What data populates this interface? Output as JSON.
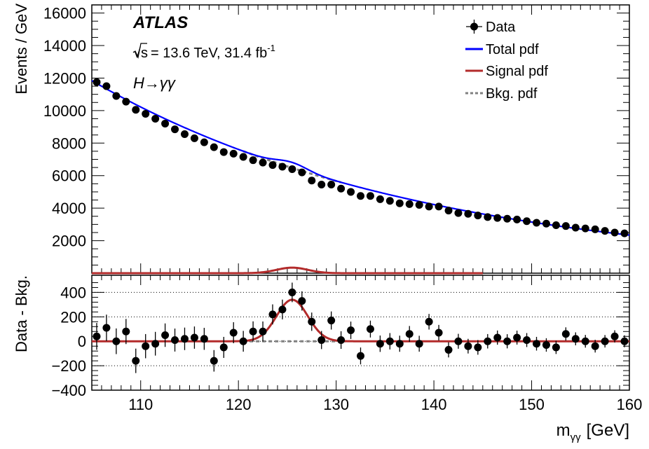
{
  "chart_data": {
    "type": "scatter",
    "experiment": "ATLAS",
    "energy_text": "= 13.6 TeV, 31.4 fb",
    "sqrt_symbol": "√s",
    "lumi_exponent": "-1",
    "process": "H→γγ",
    "xlabel": "m",
    "xlabel_sub": "γγ",
    "xlabel_unit": "[GeV]",
    "xlim": [
      105,
      160
    ],
    "x_ticks": [
      "110",
      "120",
      "130",
      "140",
      "150",
      "160"
    ],
    "legend": {
      "placement": "top-right",
      "entries": [
        "Data",
        "Total pdf",
        "Signal pdf",
        "Bkg. pdf"
      ]
    },
    "colors": {
      "data": "#000000",
      "total": "#0000ff",
      "signal": "#b32b2b",
      "background": "#808080"
    },
    "signal_model": {
      "mean": 125.5,
      "sigma": 1.6,
      "amplitude": 340
    },
    "top_panel": {
      "ylabel": "Events / GeV",
      "ylim": [
        0,
        16500
      ],
      "y_ticks": [
        "2000",
        "4000",
        "6000",
        "8000",
        "10000",
        "12000",
        "14000",
        "16000"
      ],
      "x": [
        105.5,
        106.5,
        107.5,
        108.5,
        109.5,
        110.5,
        111.5,
        112.5,
        113.5,
        114.5,
        115.5,
        116.5,
        117.5,
        118.5,
        119.5,
        120.5,
        121.5,
        122.5,
        123.5,
        124.5,
        125.5,
        126.5,
        127.5,
        128.5,
        129.5,
        130.5,
        131.5,
        132.5,
        133.5,
        134.5,
        135.5,
        136.5,
        137.5,
        138.5,
        139.5,
        140.5,
        141.5,
        142.5,
        143.5,
        144.5,
        145.5,
        146.5,
        147.5,
        148.5,
        149.5,
        150.5,
        151.5,
        152.5,
        153.5,
        154.5,
        155.5,
        156.5,
        157.5,
        158.5,
        159.5
      ],
      "data": [
        11750,
        11500,
        10900,
        10550,
        10050,
        9800,
        9500,
        9200,
        8850,
        8550,
        8300,
        8050,
        7750,
        7450,
        7350,
        7150,
        6950,
        6800,
        6650,
        6550,
        6400,
        6200,
        5700,
        5450,
        5450,
        5200,
        5000,
        4750,
        4750,
        4550,
        4450,
        4300,
        4250,
        4200,
        4100,
        4100,
        3850,
        3700,
        3650,
        3550,
        3450,
        3400,
        3350,
        3300,
        3200,
        3100,
        3050,
        2950,
        2900,
        2800,
        2750,
        2700,
        2600,
        2500,
        2450
      ],
      "errors": [
        110,
        108,
        105,
        103,
        100,
        99,
        97,
        96,
        94,
        92,
        91,
        90,
        88,
        86,
        86,
        85,
        83,
        82,
        82,
        81,
        80,
        79,
        75,
        74,
        74,
        72,
        71,
        69,
        69,
        67,
        67,
        66,
        65,
        65,
        64,
        64,
        62,
        61,
        60,
        60,
        59,
        58,
        58,
        57,
        57,
        56,
        55,
        54,
        54,
        53,
        52,
        52,
        51,
        50,
        49
      ],
      "bkg_model": {
        "a": 11500,
        "b": 0.02947,
        "x0": 106
      }
    },
    "bottom_panel": {
      "ylabel": "Data - Bkg.",
      "ylim": [
        -400,
        540
      ],
      "y_ticks": [
        "400",
        "200",
        "0",
        "−200",
        "−400"
      ],
      "data": [
        40,
        110,
        0,
        80,
        -160,
        -40,
        -20,
        50,
        10,
        20,
        30,
        20,
        -160,
        -50,
        70,
        0,
        80,
        80,
        220,
        260,
        400,
        330,
        160,
        10,
        170,
        10,
        90,
        -120,
        100,
        -20,
        0,
        -20,
        60,
        -20,
        160,
        70,
        -70,
        0,
        -40,
        -50,
        0,
        30,
        0,
        30,
        10,
        -20,
        -30,
        -50,
        60,
        20,
        0,
        -40,
        0,
        40,
        0
      ],
      "errors": [
        110,
        108,
        105,
        103,
        100,
        99,
        97,
        96,
        94,
        92,
        91,
        90,
        88,
        86,
        86,
        85,
        83,
        82,
        82,
        81,
        80,
        79,
        75,
        74,
        74,
        72,
        71,
        69,
        69,
        67,
        67,
        66,
        65,
        65,
        64,
        64,
        62,
        61,
        60,
        60,
        59,
        58,
        58,
        57,
        57,
        56,
        55,
        54,
        54,
        53,
        52,
        52,
        51,
        50,
        49
      ],
      "reference_lines": [
        400,
        200,
        0,
        -200
      ]
    }
  }
}
